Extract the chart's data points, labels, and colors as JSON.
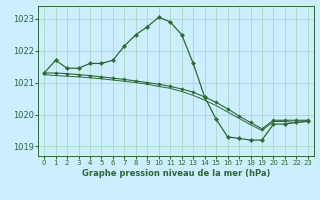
{
  "title": "Graphe pression niveau de la mer (hPa)",
  "bg_color": "#cceeff",
  "grid_color": "#aaddcc",
  "line_color": "#2d6a2d",
  "marker_color": "#2d6a2d",
  "ylim": [
    1018.7,
    1023.4
  ],
  "yticks": [
    1019,
    1020,
    1021,
    1022,
    1023
  ],
  "xlim": [
    -0.5,
    23.5
  ],
  "xticks": [
    0,
    1,
    2,
    3,
    4,
    5,
    6,
    7,
    8,
    9,
    10,
    11,
    12,
    13,
    14,
    15,
    16,
    17,
    18,
    19,
    20,
    21,
    22,
    23
  ],
  "series": [
    {
      "x": [
        0,
        1,
        2,
        3,
        4,
        5,
        6,
        7,
        8,
        9,
        10,
        11,
        12,
        13,
        14,
        15,
        16,
        17,
        18,
        19,
        20,
        21,
        22,
        23
      ],
      "y": [
        1021.3,
        1021.7,
        1021.45,
        1021.45,
        1021.6,
        1021.6,
        1021.7,
        1022.15,
        1022.5,
        1022.75,
        1023.05,
        1022.9,
        1022.5,
        1021.6,
        1020.55,
        1019.85,
        1019.3,
        1019.25,
        1019.2,
        1019.2,
        1019.7,
        1019.7,
        1019.75,
        1019.8
      ]
    },
    {
      "x": [
        0,
        1,
        2,
        3,
        4,
        5,
        6,
        7,
        8,
        9,
        10,
        11,
        12,
        13,
        14,
        15,
        16,
        17,
        18,
        19,
        20,
        21,
        22,
        23
      ],
      "y": [
        1021.3,
        1021.3,
        1021.28,
        1021.25,
        1021.22,
        1021.18,
        1021.14,
        1021.1,
        1021.05,
        1021.0,
        1020.95,
        1020.88,
        1020.8,
        1020.7,
        1020.55,
        1020.38,
        1020.18,
        1019.95,
        1019.75,
        1019.55,
        1019.82,
        1019.82,
        1019.82,
        1019.82
      ]
    },
    {
      "x": [
        0,
        1,
        2,
        3,
        4,
        5,
        6,
        7,
        8,
        9,
        10,
        11,
        12,
        13,
        14,
        15,
        16,
        17,
        18,
        19,
        20,
        21,
        22,
        23
      ],
      "y": [
        1021.25,
        1021.22,
        1021.2,
        1021.18,
        1021.15,
        1021.12,
        1021.08,
        1021.04,
        1021.0,
        1020.95,
        1020.88,
        1020.82,
        1020.72,
        1020.6,
        1020.45,
        1020.28,
        1020.08,
        1019.88,
        1019.68,
        1019.5,
        1019.78,
        1019.78,
        1019.75,
        1019.78
      ]
    }
  ]
}
